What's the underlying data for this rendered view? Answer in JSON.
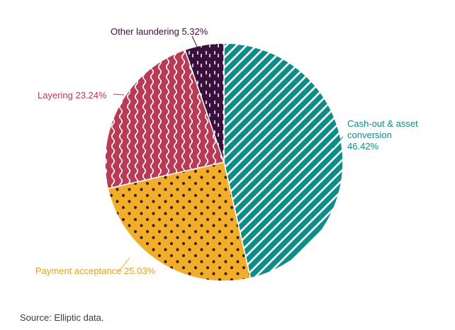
{
  "chart_data": {
    "type": "pie",
    "slices": [
      {
        "label": "Cash-out & asset conversion",
        "value": 46.42,
        "display": "46.42%",
        "color": "#0f8c87",
        "pattern": "diagonal-stripes"
      },
      {
        "label": "Payment acceptance",
        "value": 25.03,
        "display": "25.03%",
        "color": "#f2ad2a",
        "pattern": "dots"
      },
      {
        "label": "Layering",
        "value": 23.24,
        "display": "23.24%",
        "color": "#b83a55",
        "pattern": "wavy-lines"
      },
      {
        "label": "Other laundering",
        "value": 5.32,
        "display": "5.32%",
        "color": "#3a0e3d",
        "pattern": "dashes"
      }
    ],
    "labels": {
      "cashout_line1": "Cash-out & asset",
      "cashout_line2": "conversion",
      "cashout_line3": "46.42%",
      "payment": "Payment acceptance 25.03%",
      "layering": "Layering 23.24%",
      "other": "Other laundering 5.32%"
    },
    "legend": "none"
  },
  "source": "Source: Elliptic data."
}
